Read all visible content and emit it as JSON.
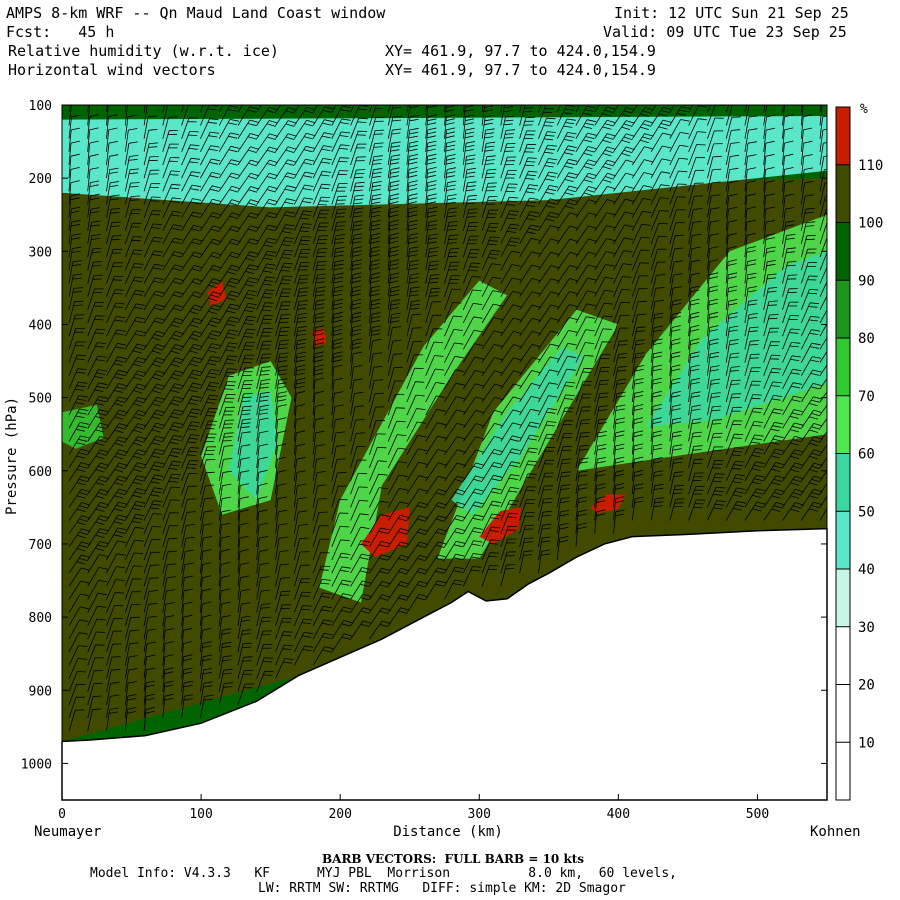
{
  "header": {
    "title": "AMPS 8-km WRF -- Qn Maud Land Coast window",
    "fcst": "Fcst:   45 h",
    "init": "Init: 12 UTC Sun 21 Sep 25",
    "valid": "Valid: 09 UTC Tue 23 Sep 25",
    "field1": "Relative humidity (w.r.t. ice)",
    "field2": "Horizontal wind vectors",
    "xy1": "XY= 461.9, 97.7 to 424.0,154.9",
    "xy2": "XY= 461.9, 97.7 to 424.0,154.9"
  },
  "chart_data": {
    "type": "heatmap",
    "xlabel": "Distance (km)",
    "ylabel": "Pressure (hPa)",
    "xlim": [
      0,
      550
    ],
    "ylim": [
      1050,
      100
    ],
    "x_ticks": [
      0,
      100,
      200,
      300,
      400,
      500
    ],
    "y_ticks": [
      100,
      200,
      300,
      400,
      500,
      600,
      700,
      800,
      900,
      1000
    ],
    "left_endpoint": "Neumayer",
    "right_endpoint": "Kohnen",
    "colorbar": {
      "unit": "%",
      "levels": [
        10,
        20,
        30,
        40,
        50,
        60,
        70,
        80,
        90,
        100,
        110
      ],
      "colors": [
        "#ffffff",
        "#ffffff",
        "#ffffff",
        "#c8f5e6",
        "#5ae6c8",
        "#3cd7a0",
        "#50e650",
        "#32c832",
        "#1e961e",
        "#006400",
        "#404b00",
        "#c81e00"
      ]
    },
    "terrain_surface": [
      {
        "x": 0,
        "p": 970
      },
      {
        "x": 20,
        "p": 968
      },
      {
        "x": 60,
        "p": 962
      },
      {
        "x": 100,
        "p": 945
      },
      {
        "x": 140,
        "p": 915
      },
      {
        "x": 170,
        "p": 880
      },
      {
        "x": 200,
        "p": 855
      },
      {
        "x": 230,
        "p": 830
      },
      {
        "x": 260,
        "p": 800
      },
      {
        "x": 280,
        "p": 780
      },
      {
        "x": 292,
        "p": 765
      },
      {
        "x": 305,
        "p": 778
      },
      {
        "x": 320,
        "p": 775
      },
      {
        "x": 335,
        "p": 755
      },
      {
        "x": 350,
        "p": 740
      },
      {
        "x": 370,
        "p": 718
      },
      {
        "x": 390,
        "p": 700
      },
      {
        "x": 410,
        "p": 690
      },
      {
        "x": 450,
        "p": 687
      },
      {
        "x": 500,
        "p": 682
      },
      {
        "x": 550,
        "p": 679
      }
    ],
    "rh_regions": [
      {
        "level": 100,
        "points": [
          [
            0,
            220
          ],
          [
            550,
            200
          ],
          [
            550,
            680
          ],
          [
            0,
            970
          ]
        ]
      },
      {
        "level": 40,
        "points": [
          [
            0,
            120
          ],
          [
            550,
            115
          ],
          [
            550,
            190
          ],
          [
            350,
            230
          ],
          [
            150,
            240
          ],
          [
            0,
            220
          ]
        ]
      },
      {
        "level": 110,
        "points": [
          [
            105,
            355
          ],
          [
            115,
            340
          ],
          [
            118,
            365
          ],
          [
            107,
            375
          ]
        ]
      },
      {
        "level": 110,
        "points": [
          [
            180,
            410
          ],
          [
            188,
            405
          ],
          [
            190,
            425
          ],
          [
            182,
            430
          ]
        ]
      },
      {
        "level": 110,
        "points": [
          [
            215,
            700
          ],
          [
            230,
            660
          ],
          [
            250,
            650
          ],
          [
            248,
            700
          ],
          [
            225,
            718
          ]
        ]
      },
      {
        "level": 110,
        "points": [
          [
            300,
            690
          ],
          [
            315,
            655
          ],
          [
            330,
            650
          ],
          [
            328,
            680
          ],
          [
            310,
            700
          ]
        ]
      },
      {
        "level": 110,
        "points": [
          [
            380,
            650
          ],
          [
            392,
            632
          ],
          [
            405,
            633
          ],
          [
            400,
            652
          ],
          [
            385,
            658
          ]
        ]
      }
    ]
  },
  "footer": {
    "barb": "BARB VECTORS:  FULL BARB = 10 kts",
    "model1": "Model Info: V4.3.3   KF      MYJ PBL  Morrison          8.0 km,  60 levels,",
    "model2": "LW: RRTM SW: RRTMG   DIFF: simple KM: 2D Smagor"
  }
}
